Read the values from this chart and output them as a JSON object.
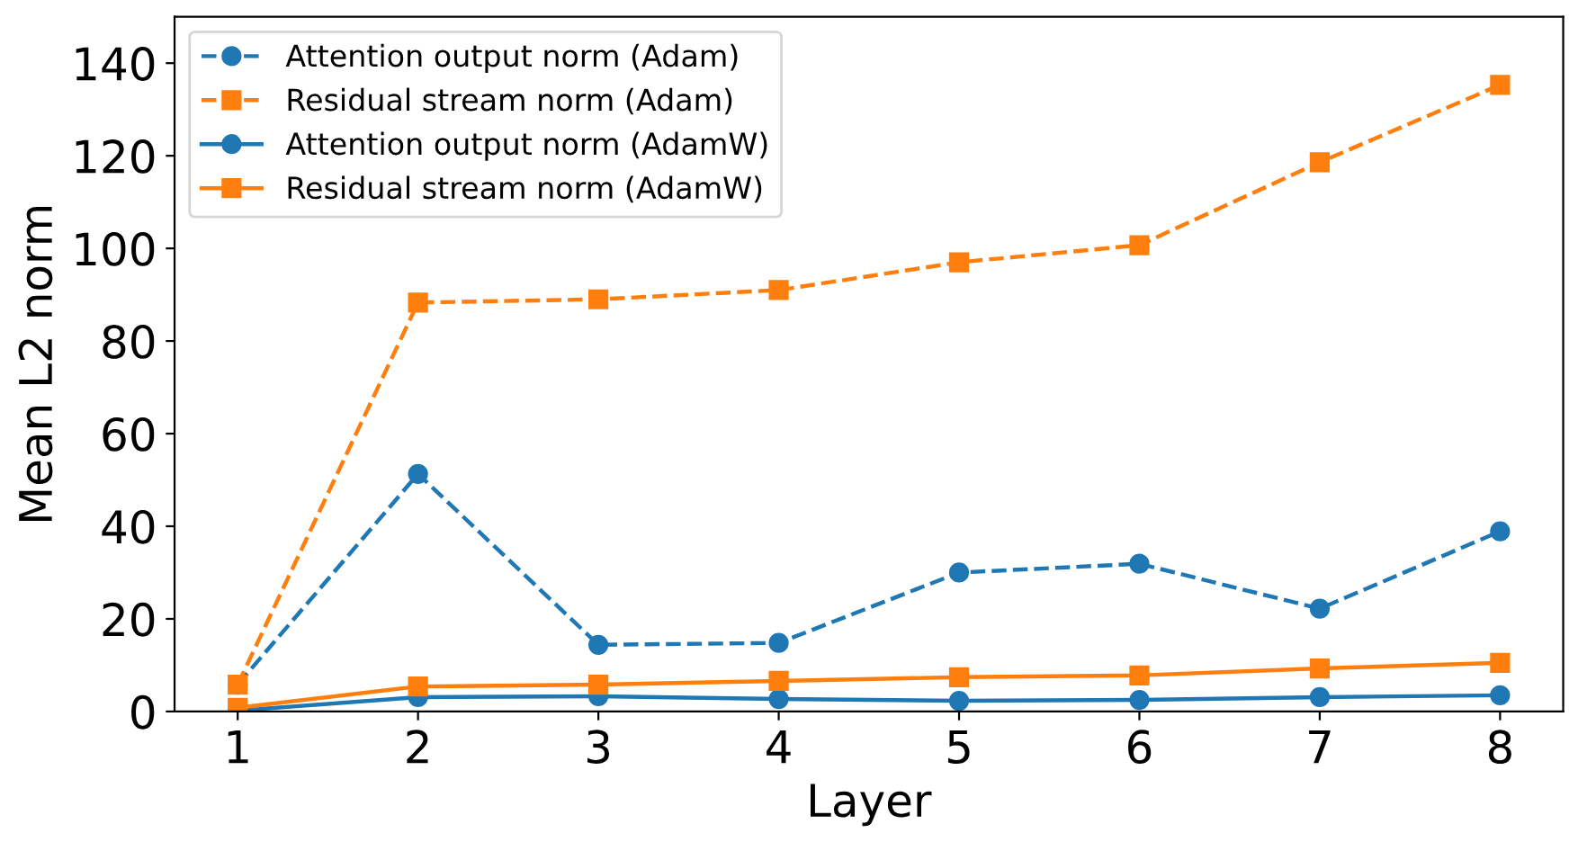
{
  "chart_data": {
    "type": "line",
    "xlabel": "Layer",
    "ylabel": "Mean L2 norm",
    "x": [
      1,
      2,
      3,
      4,
      5,
      6,
      7,
      8
    ],
    "xlim": [
      0.65,
      8.35
    ],
    "xticks": [
      1,
      2,
      3,
      4,
      5,
      6,
      7,
      8
    ],
    "ylim": [
      0,
      150
    ],
    "yticks": [
      0,
      20,
      40,
      60,
      80,
      100,
      120,
      140
    ],
    "grid": false,
    "legend": "top left",
    "series": [
      {
        "name": "Attention output norm (Adam)",
        "color": "#1f77b4",
        "marker": "circle",
        "line_style": "dashed",
        "values": [
          5.8,
          51.3,
          14.4,
          14.8,
          30,
          31.9,
          22.2,
          38.9
        ]
      },
      {
        "name": "Residual stream norm (Adam)",
        "color": "#ff7f0e",
        "marker": "square",
        "line_style": "dashed",
        "values": [
          5.8,
          88.3,
          89,
          91,
          97,
          100.7,
          118.6,
          135.3
        ]
      },
      {
        "name": "Attention output norm (AdamW)",
        "color": "#1f77b4",
        "marker": "circle",
        "line_style": "solid",
        "values": [
          0.2,
          3.1,
          3.3,
          2.7,
          2.3,
          2.5,
          3.1,
          3.5
        ]
      },
      {
        "name": "Residual stream norm (AdamW)",
        "color": "#ff7f0e",
        "marker": "square",
        "line_style": "solid",
        "values": [
          0.8,
          5.4,
          5.8,
          6.6,
          7.4,
          7.8,
          9.3,
          10.5
        ]
      }
    ]
  }
}
